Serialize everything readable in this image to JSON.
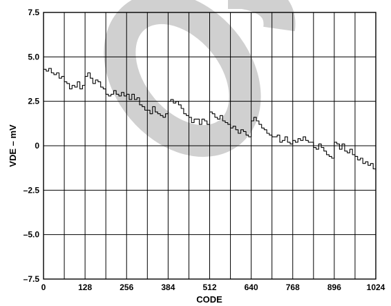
{
  "chart_data": {
    "type": "line",
    "title": "",
    "xlabel": "CODE",
    "ylabel": "VDE – mV",
    "xlim": [
      0,
      1024
    ],
    "ylim": [
      -7.5,
      7.5
    ],
    "grid": true,
    "x_ticks": [
      0,
      128,
      256,
      384,
      512,
      640,
      768,
      896,
      1024
    ],
    "x_tick_labels": [
      "0",
      "128",
      "256",
      "384",
      "512",
      "640",
      "768",
      "896",
      "1024"
    ],
    "y_ticks": [
      7.5,
      5.0,
      2.5,
      0,
      -2.5,
      -5.0,
      -7.5
    ],
    "y_tick_labels": [
      "7.5",
      "5.0",
      "2.5",
      "0",
      "–2.5",
      "–5.0",
      "–7.5"
    ],
    "series": [
      {
        "x": [
          0,
          8,
          16,
          24,
          32,
          40,
          48,
          56,
          64,
          72,
          80,
          88,
          96,
          104,
          112,
          120,
          128,
          136,
          144,
          152,
          160,
          168,
          176,
          184,
          192,
          200,
          208,
          216,
          224,
          232,
          240,
          248,
          256,
          264,
          272,
          280,
          288,
          296,
          304,
          312,
          320,
          328,
          336,
          344,
          352,
          360,
          368,
          376,
          384,
          392,
          400,
          408,
          416,
          424,
          432,
          440,
          448,
          456,
          464,
          472,
          480,
          488,
          496,
          504,
          512,
          520,
          528,
          536,
          544,
          552,
          560,
          568,
          576,
          584,
          592,
          600,
          608,
          616,
          624,
          632,
          640,
          648,
          656,
          664,
          672,
          680,
          688,
          696,
          704,
          712,
          720,
          728,
          736,
          744,
          752,
          760,
          768,
          776,
          784,
          792,
          800,
          808,
          816,
          824,
          832,
          840,
          848,
          856,
          864,
          872,
          880,
          888,
          896,
          904,
          912,
          920,
          928,
          936,
          944,
          952,
          960,
          968,
          976,
          984,
          992,
          1000,
          1008,
          1016,
          1024
        ],
        "values": [
          4.3,
          4.2,
          4.35,
          4.1,
          4.0,
          4.1,
          3.8,
          3.9,
          3.6,
          3.5,
          3.2,
          3.4,
          3.3,
          3.6,
          3.2,
          3.4,
          3.9,
          4.1,
          3.8,
          3.5,
          3.7,
          3.6,
          3.3,
          3.2,
          2.9,
          2.8,
          2.9,
          3.1,
          2.9,
          2.8,
          3.0,
          2.8,
          2.9,
          2.6,
          2.9,
          2.6,
          2.7,
          2.3,
          2.2,
          2.0,
          2.0,
          1.8,
          2.2,
          1.9,
          1.8,
          1.7,
          1.6,
          1.8,
          2.5,
          2.6,
          2.4,
          2.5,
          2.3,
          2.1,
          1.8,
          1.7,
          1.6,
          1.3,
          1.5,
          1.5,
          1.2,
          1.5,
          1.4,
          1.2,
          1.9,
          1.8,
          1.6,
          1.5,
          1.7,
          1.4,
          1.3,
          1.2,
          1.0,
          1.1,
          0.9,
          0.7,
          0.9,
          0.8,
          0.6,
          0.5,
          1.4,
          1.6,
          1.4,
          1.2,
          1.0,
          0.9,
          0.7,
          0.6,
          0.5,
          0.5,
          0.6,
          0.2,
          0.3,
          0.5,
          0.2,
          0.1,
          0.3,
          0.2,
          0.4,
          0.3,
          0.5,
          0.3,
          0.2,
          0.2,
          -0.1,
          -0.2,
          0.1,
          -0.1,
          -0.3,
          -0.5,
          -0.6,
          -0.7,
          0.2,
          0.1,
          -0.2,
          0.1,
          -0.3,
          -0.4,
          -0.2,
          -0.5,
          -0.6,
          -0.8,
          -0.7,
          -1.0,
          -0.9,
          -1.1,
          -1.0,
          -1.3,
          -1.4
        ]
      }
    ]
  },
  "watermark": {
    "text": "OBSOLETE"
  }
}
